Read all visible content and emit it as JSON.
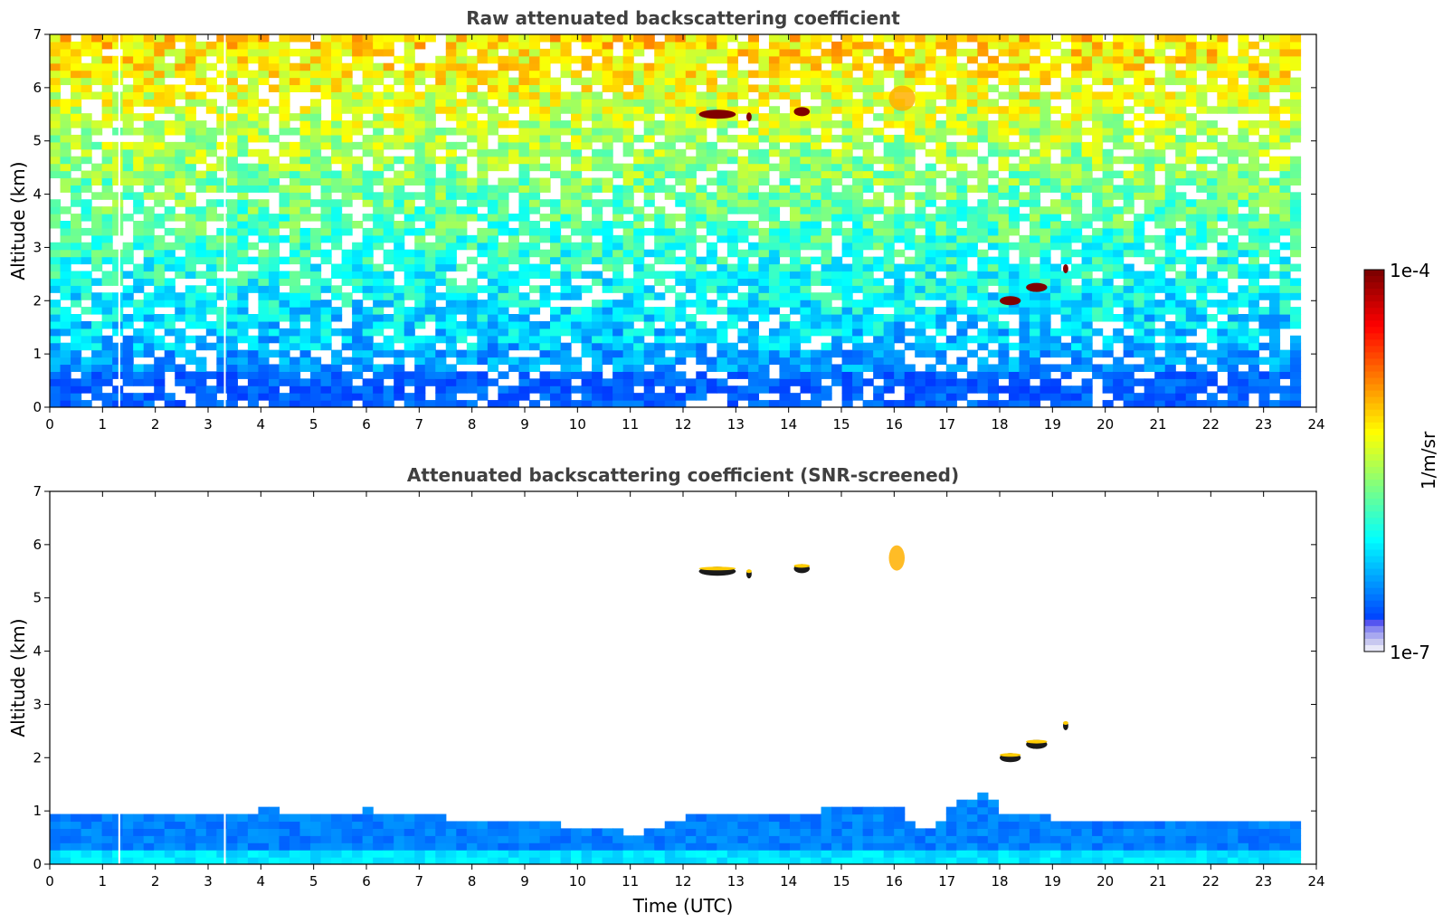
{
  "chart_data": [
    {
      "type": "heatmap",
      "title": "Raw attenuated backscattering coefficient",
      "xlabel": "",
      "ylabel": "Altitude (km)",
      "xlim": [
        0,
        24
      ],
      "ylim": [
        0,
        7
      ],
      "x_ticks": [
        0,
        1,
        2,
        3,
        4,
        5,
        6,
        7,
        8,
        9,
        10,
        11,
        12,
        13,
        14,
        15,
        16,
        17,
        18,
        19,
        20,
        21,
        22,
        23,
        24
      ],
      "y_ticks": [
        0,
        1,
        2,
        3,
        4,
        5,
        6,
        7
      ],
      "data_end_time": 23.7,
      "data_gaps_time": [
        1.3,
        3.3
      ],
      "screened": false,
      "features": [
        {
          "kind": "cloud",
          "t_start": 12.3,
          "t_end": 13.0,
          "altitude": 5.5,
          "level": 1.0
        },
        {
          "kind": "cloud",
          "t_start": 13.2,
          "t_end": 13.3,
          "altitude": 5.45,
          "level": 1.0
        },
        {
          "kind": "cloud",
          "t_start": 14.1,
          "t_end": 14.4,
          "altitude": 5.55,
          "level": 1.0
        },
        {
          "kind": "cloud",
          "t_start": 15.9,
          "t_end": 16.4,
          "altitude": 5.8,
          "level": 0.85
        },
        {
          "kind": "cloud",
          "t_start": 18.0,
          "t_end": 18.4,
          "altitude": 2.0,
          "level": 1.0
        },
        {
          "kind": "cloud",
          "t_start": 18.5,
          "t_end": 18.9,
          "altitude": 2.25,
          "level": 1.0
        },
        {
          "kind": "cloud",
          "t_start": 19.2,
          "t_end": 19.3,
          "altitude": 2.6,
          "level": 1.0
        }
      ]
    },
    {
      "type": "heatmap",
      "title": "Attenuated backscattering coefficient (SNR-screened)",
      "xlabel": "Time (UTC)",
      "ylabel": "Altitude (km)",
      "xlim": [
        0,
        24
      ],
      "ylim": [
        0,
        7
      ],
      "x_ticks": [
        0,
        1,
        2,
        3,
        4,
        5,
        6,
        7,
        8,
        9,
        10,
        11,
        12,
        13,
        14,
        15,
        16,
        17,
        18,
        19,
        20,
        21,
        22,
        23,
        24
      ],
      "y_ticks": [
        0,
        1,
        2,
        3,
        4,
        5,
        6,
        7
      ],
      "data_end_time": 23.7,
      "data_gaps_time": [
        1.3,
        3.3
      ],
      "screened": true,
      "boundary_layer_top_km": [
        [
          0,
          0.85
        ],
        [
          2,
          0.85
        ],
        [
          3,
          0.9
        ],
        [
          4,
          0.95
        ],
        [
          5,
          0.9
        ],
        [
          6,
          0.95
        ],
        [
          7,
          0.85
        ],
        [
          8,
          0.75
        ],
        [
          9,
          0.7
        ],
        [
          10,
          0.65
        ],
        [
          11,
          0.5
        ],
        [
          12,
          0.85
        ],
        [
          13,
          0.9
        ],
        [
          14,
          0.85
        ],
        [
          15,
          1.05
        ],
        [
          16,
          0.95
        ],
        [
          16.5,
          0.5
        ],
        [
          17,
          1.0
        ],
        [
          17.6,
          1.3
        ],
        [
          18,
          0.85
        ],
        [
          19,
          0.8
        ],
        [
          20,
          0.75
        ],
        [
          21,
          0.75
        ],
        [
          22,
          0.75
        ],
        [
          23,
          0.75
        ],
        [
          23.7,
          0.75
        ]
      ],
      "features": [
        {
          "kind": "cloud",
          "t_start": 12.3,
          "t_end": 13.0,
          "altitude": 5.5,
          "level": 1.0
        },
        {
          "kind": "cloud",
          "t_start": 13.2,
          "t_end": 13.3,
          "altitude": 5.45,
          "level": 1.0
        },
        {
          "kind": "cloud",
          "t_start": 14.1,
          "t_end": 14.4,
          "altitude": 5.55,
          "level": 1.0
        },
        {
          "kind": "cloud",
          "t_start": 15.9,
          "t_end": 16.2,
          "altitude": 5.75,
          "level": 0.85
        },
        {
          "kind": "cloud",
          "t_start": 18.0,
          "t_end": 18.4,
          "altitude": 2.0,
          "level": 1.0
        },
        {
          "kind": "cloud",
          "t_start": 18.5,
          "t_end": 18.9,
          "altitude": 2.25,
          "level": 1.0
        },
        {
          "kind": "cloud",
          "t_start": 19.2,
          "t_end": 19.3,
          "altitude": 2.6,
          "level": 1.0
        }
      ]
    }
  ],
  "colorbar": {
    "label": "1/m/sr",
    "min_label": "1e-7",
    "max_label": "1e-4",
    "colormap": "jet",
    "low_end_colors": [
      "#e8e8f8",
      "#c8c8f0",
      "#a8a8f0",
      "#8888f0",
      "#5555f0"
    ]
  }
}
